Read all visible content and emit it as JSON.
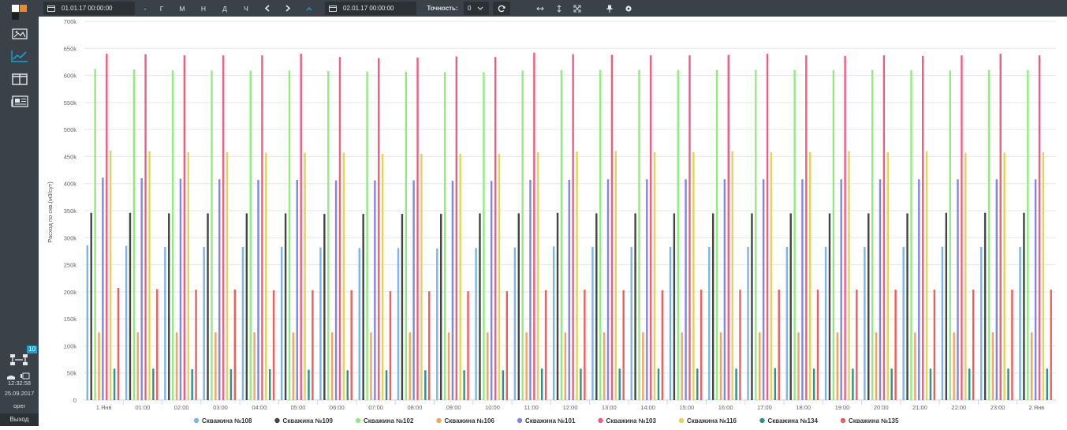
{
  "sidebar": {
    "icons": [
      "image-icon",
      "line-chart-icon",
      "columns-icon",
      "newspaper-icon"
    ],
    "active_index": 1,
    "badge": "10",
    "time": "12:32:58",
    "date": "25.09.2017",
    "user": "oper",
    "exit_label": "Выход"
  },
  "toolbar": {
    "date_from": "01.01.17 00:00:00",
    "date_to": "02.01.17 00:00:00",
    "dash": "-",
    "period_buttons": [
      "Г",
      "М",
      "Н",
      "Д",
      "Ч"
    ],
    "precision_label": "Точность:",
    "precision_value": "0"
  },
  "colors": {
    "sidebar_bg": "#3b4148",
    "accent": "#1ea0d2",
    "grid": "#e6e6e6"
  },
  "chart_data": {
    "type": "bar",
    "title": "",
    "xlabel": "",
    "ylabel": "Расход по скв.(м3/сут)",
    "ylim": [
      0,
      700000
    ],
    "yticks": [
      0,
      50000,
      100000,
      150000,
      200000,
      250000,
      300000,
      350000,
      400000,
      450000,
      500000,
      550000,
      600000,
      650000,
      700000
    ],
    "ytick_labels": [
      "0",
      "50k",
      "100k",
      "150k",
      "200k",
      "250k",
      "300k",
      "350k",
      "400k",
      "450k",
      "500k",
      "550k",
      "600k",
      "650k",
      "700k"
    ],
    "categories": [
      "1.Янв",
      "01:00",
      "02:00",
      "03:00",
      "04:00",
      "05:00",
      "06:00",
      "07:00",
      "08:00",
      "09:00",
      "10:00",
      "11:00",
      "12:00",
      "13:00",
      "14:00",
      "15:00",
      "16:00",
      "17:00",
      "18:00",
      "19:00",
      "20:00",
      "21:00",
      "22:00",
      "23:00",
      "2.Янв"
    ],
    "legend_position": "bottom",
    "grid": true,
    "series": [
      {
        "name": "Скважина №108",
        "color": "#7cb5ec",
        "values": [
          286000,
          285000,
          283000,
          283000,
          283000,
          283000,
          282000,
          281000,
          281000,
          280000,
          281000,
          282000,
          284000,
          283000,
          283000,
          283000,
          283000,
          283000,
          283000,
          283000,
          283000,
          283000,
          283000,
          283000,
          283000
        ]
      },
      {
        "name": "Скважина №109",
        "color": "#434348",
        "values": [
          346000,
          346000,
          345000,
          345000,
          345000,
          345000,
          344000,
          344000,
          344000,
          344000,
          345000,
          345000,
          346000,
          345000,
          345000,
          345000,
          345000,
          345000,
          345000,
          345000,
          345000,
          345000,
          346000,
          346000,
          346000
        ]
      },
      {
        "name": "Скважина №102",
        "color": "#90ed7d",
        "values": [
          612000,
          611000,
          609000,
          609000,
          609000,
          609000,
          608000,
          607000,
          607000,
          606000,
          606000,
          609000,
          610000,
          610000,
          610000,
          610000,
          610000,
          610000,
          610000,
          610000,
          610000,
          610000,
          609000,
          610000,
          610000
        ]
      },
      {
        "name": "Скважина №106",
        "color": "#f7a35c",
        "values": [
          125000,
          125000,
          125000,
          125000,
          125000,
          125000,
          125000,
          125000,
          125000,
          125000,
          125000,
          125000,
          125000,
          125000,
          125000,
          125000,
          125000,
          125000,
          125000,
          125000,
          125000,
          125000,
          125000,
          125000,
          125000
        ]
      },
      {
        "name": "Скважина №101",
        "color": "#8085e9",
        "values": [
          411000,
          410000,
          409000,
          408000,
          407000,
          407000,
          406000,
          406000,
          406000,
          405000,
          405000,
          407000,
          407000,
          408000,
          408000,
          408000,
          408000,
          408000,
          408000,
          408000,
          408000,
          408000,
          408000,
          408000,
          408000
        ]
      },
      {
        "name": "Скважина №103",
        "color": "#f15c80",
        "values": [
          640000,
          639000,
          637000,
          637000,
          637000,
          640000,
          634000,
          632000,
          633000,
          635000,
          634000,
          642000,
          639000,
          638000,
          637000,
          637000,
          638000,
          640000,
          637000,
          636000,
          637000,
          636000,
          637000,
          640000,
          637000
        ]
      },
      {
        "name": "Скважина №116",
        "color": "#e4d354",
        "values": [
          461000,
          460000,
          458000,
          458000,
          457000,
          457000,
          457000,
          455000,
          455000,
          455000,
          455000,
          458000,
          459000,
          460000,
          458000,
          458000,
          460000,
          458000,
          458000,
          460000,
          458000,
          460000,
          457000,
          457000,
          458000
        ]
      },
      {
        "name": "Скважина №134",
        "color": "#2b908f",
        "values": [
          58000,
          58000,
          57000,
          57000,
          57000,
          56000,
          55000,
          55000,
          55000,
          55000,
          55000,
          58000,
          58000,
          58000,
          58000,
          58000,
          58000,
          59000,
          58000,
          58000,
          58000,
          58000,
          58000,
          58000,
          58000
        ]
      },
      {
        "name": "Скважина №135",
        "color": "#f45b5b",
        "values": [
          207000,
          205000,
          204000,
          204000,
          203000,
          203000,
          203000,
          201000,
          201000,
          201000,
          201000,
          203000,
          204000,
          203000,
          203000,
          204000,
          204000,
          204000,
          204000,
          204000,
          204000,
          204000,
          204000,
          204000,
          204000
        ]
      }
    ]
  }
}
